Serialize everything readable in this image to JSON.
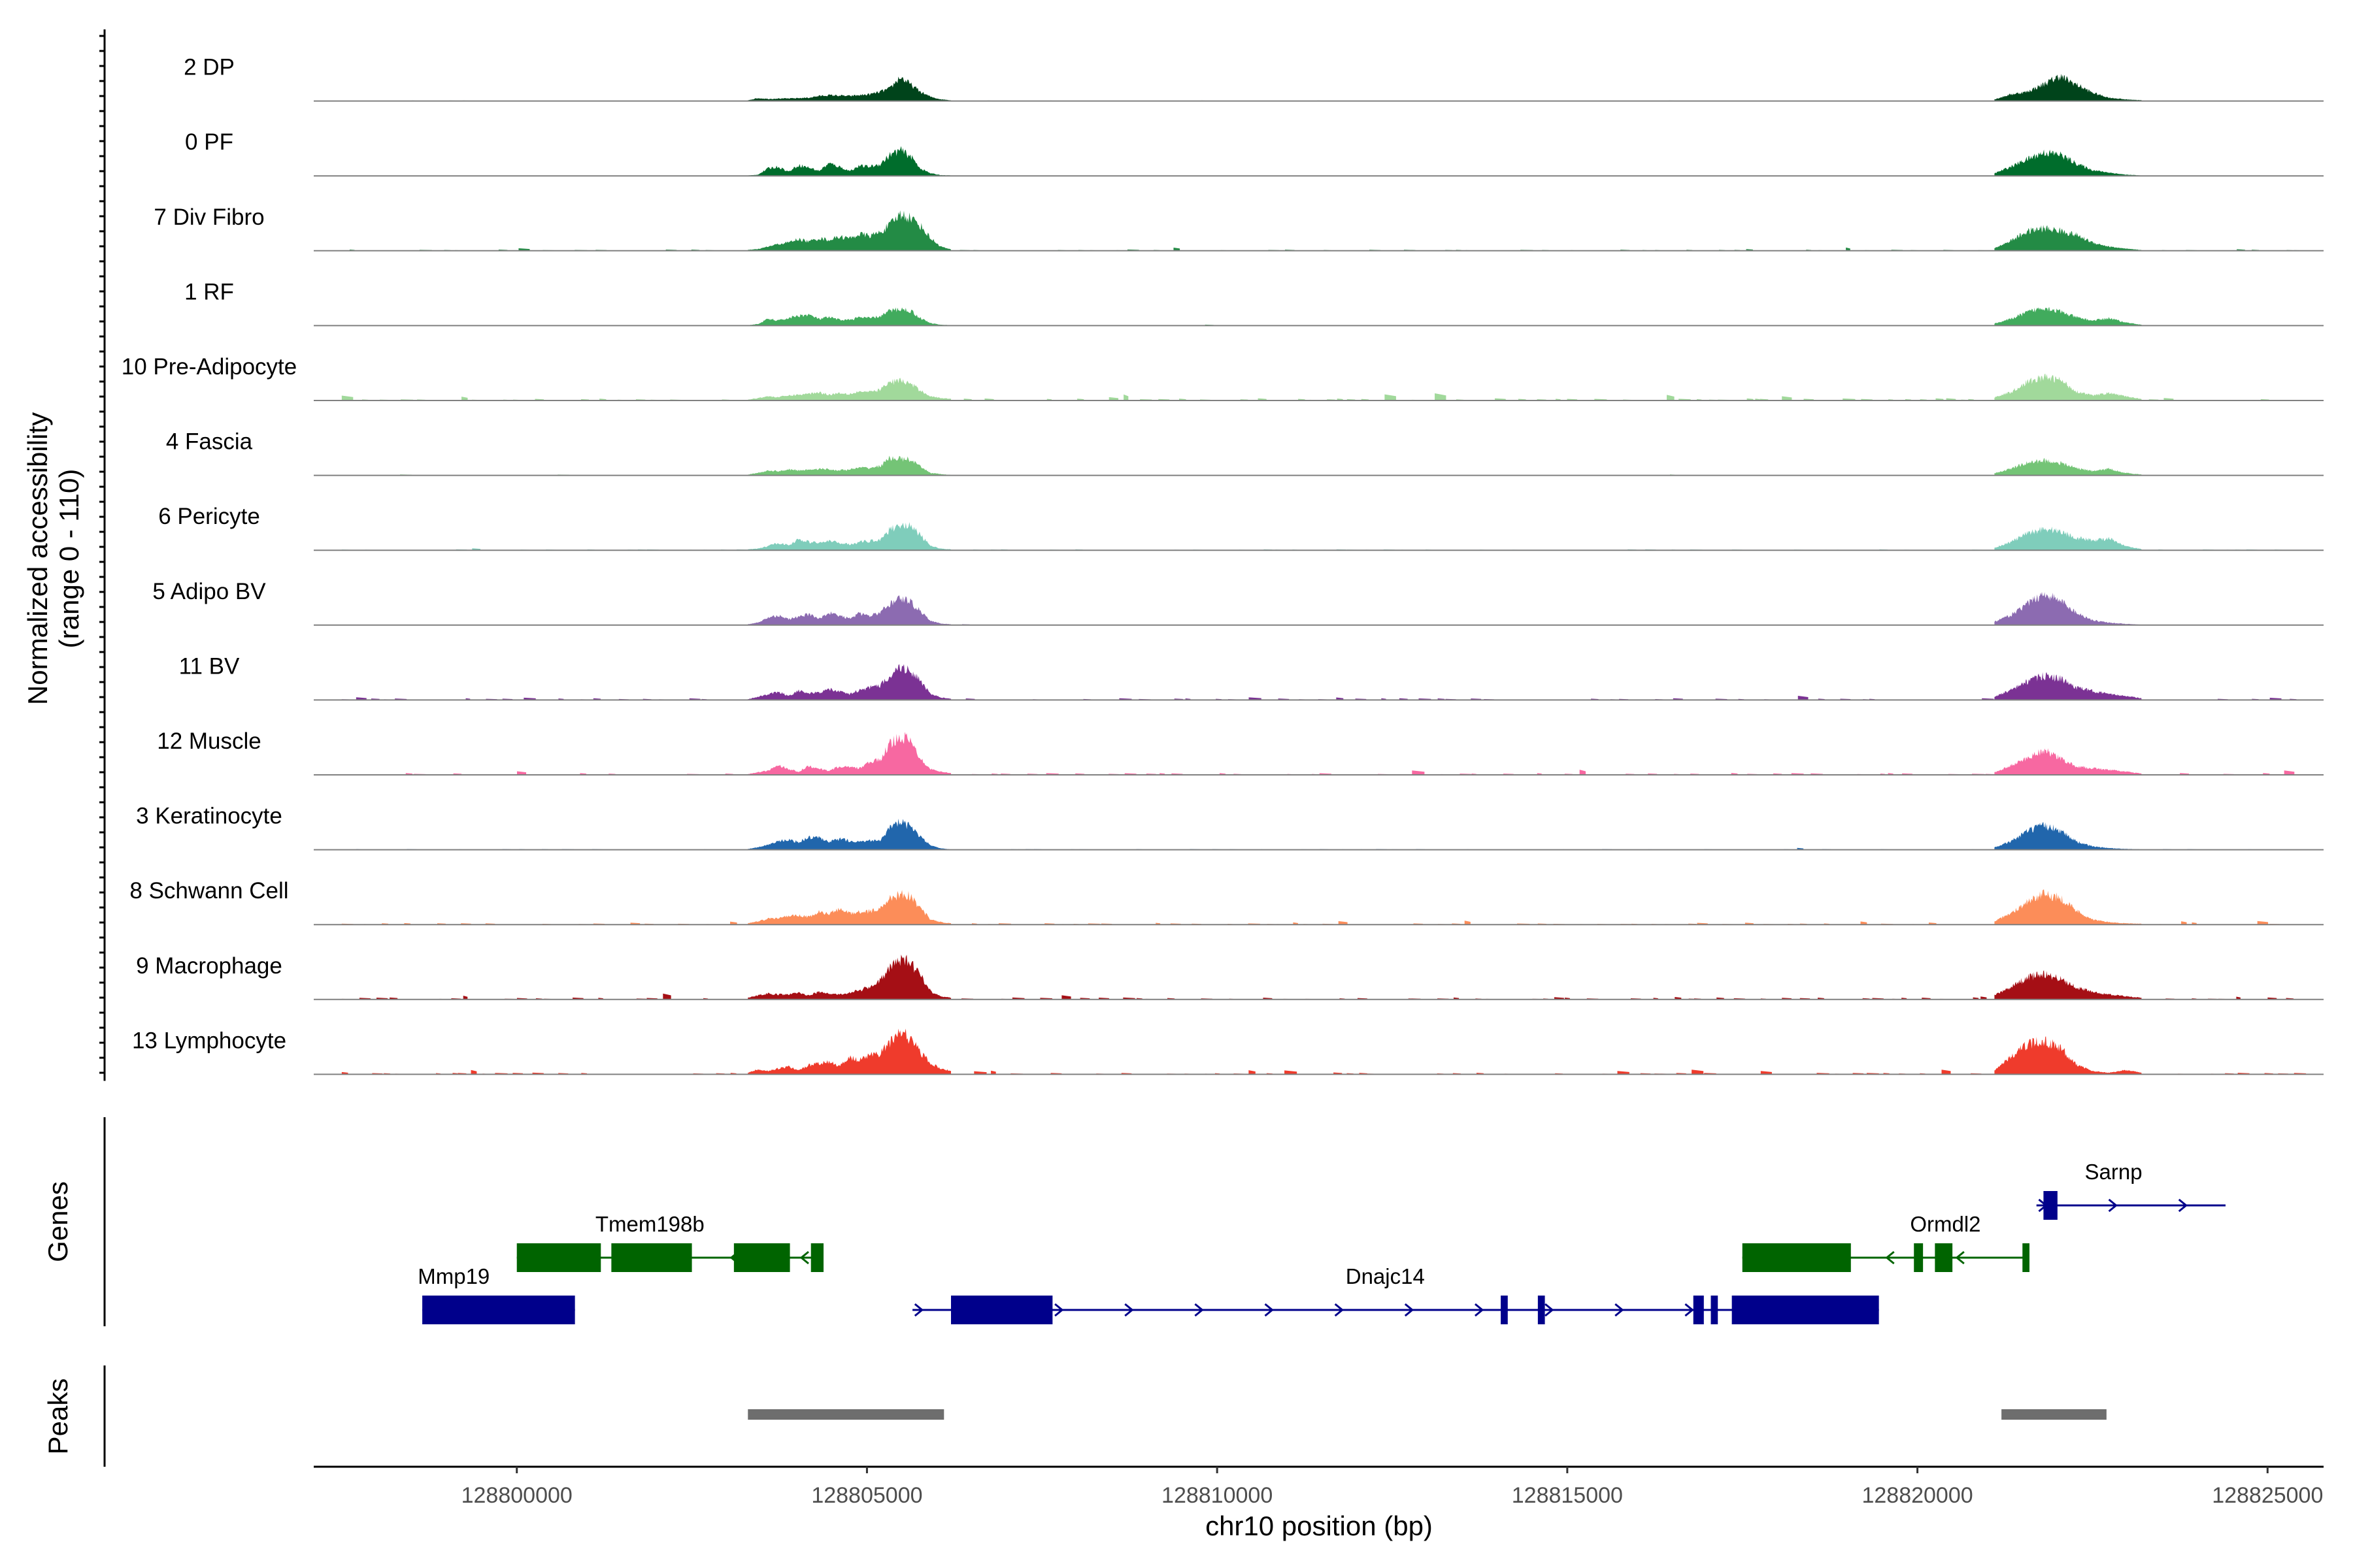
{
  "chart_data": {
    "type": "area",
    "title": "",
    "xlabel": "chr10 position (bp)",
    "ylabel_line1": "Normalized accessibility",
    "ylabel_line2": "(range 0 - 110)",
    "y_range": [
      0,
      110
    ],
    "xlim": [
      128797100,
      128825800
    ],
    "x_ticks": [
      128800000,
      128805000,
      128810000,
      128815000,
      128820000,
      128825000
    ],
    "x_tick_labels": [
      "128800000",
      "128805000",
      "128810000",
      "128815000",
      "128820000",
      "128825000"
    ],
    "genes_label": "Genes",
    "peaks_label": "Peaks",
    "tracks": [
      {
        "name": "2 DP",
        "color": "#00441b",
        "main": [
          2,
          7,
          5,
          6,
          6,
          7,
          8,
          12,
          14,
          13,
          12,
          14,
          16,
          22,
          30,
          58,
          40,
          22,
          10,
          4,
          2
        ],
        "peak2": [
          4,
          16,
          22,
          40,
          60,
          40,
          20,
          8,
          4,
          2
        ],
        "noise": 0.5
      },
      {
        "name": "0 PF",
        "color": "#006d2c",
        "main": [
          1,
          3,
          18,
          22,
          10,
          26,
          20,
          12,
          30,
          22,
          12,
          24,
          22,
          28,
          50,
          62,
          48,
          18,
          6,
          2,
          1
        ],
        "peak2": [
          6,
          22,
          40,
          56,
          52,
          30,
          14,
          8,
          3,
          1
        ],
        "noise": 0.3
      },
      {
        "name": "7 Div Fibro",
        "color": "#238b45",
        "main": [
          2,
          4,
          10,
          16,
          20,
          28,
          22,
          30,
          26,
          34,
          30,
          40,
          36,
          44,
          62,
          88,
          80,
          60,
          30,
          10,
          3
        ],
        "peak2": [
          6,
          24,
          46,
          54,
          48,
          38,
          20,
          10,
          5,
          2
        ],
        "noise": 1.2
      },
      {
        "name": "1 RF",
        "color": "#41ab5d",
        "main": [
          1,
          4,
          16,
          12,
          18,
          24,
          26,
          16,
          20,
          14,
          14,
          20,
          18,
          22,
          36,
          40,
          36,
          18,
          6,
          2,
          1
        ],
        "peak2": [
          5,
          16,
          32,
          44,
          34,
          20,
          12,
          18,
          8,
          2
        ],
        "noise": 0.5
      },
      {
        "name": "10 Pre-Adipocyte",
        "color": "#a1d99b",
        "main": [
          2,
          6,
          10,
          8,
          12,
          14,
          16,
          20,
          14,
          18,
          16,
          22,
          20,
          26,
          44,
          48,
          40,
          24,
          10,
          6,
          4
        ],
        "peak2": [
          8,
          20,
          44,
          56,
          50,
          22,
          12,
          18,
          10,
          4
        ],
        "noise": 2.2
      },
      {
        "name": "4 Fascia",
        "color": "#74c476",
        "main": [
          2,
          6,
          12,
          10,
          14,
          12,
          14,
          16,
          14,
          12,
          14,
          18,
          18,
          22,
          42,
          40,
          38,
          20,
          6,
          3,
          1
        ],
        "peak2": [
          5,
          16,
          30,
          36,
          30,
          18,
          10,
          16,
          6,
          2
        ],
        "noise": 0.4
      },
      {
        "name": "6 Pericyte",
        "color": "#7fcdbb",
        "main": [
          2,
          4,
          10,
          18,
          12,
          26,
          20,
          18,
          22,
          18,
          14,
          20,
          22,
          26,
          50,
          62,
          58,
          36,
          10,
          4,
          2
        ],
        "peak2": [
          6,
          20,
          40,
          52,
          46,
          30,
          24,
          28,
          10,
          3
        ],
        "noise": 0.9
      },
      {
        "name": "5 Adipo BV",
        "color": "#8c6bb1",
        "main": [
          2,
          6,
          18,
          24,
          14,
          20,
          26,
          16,
          30,
          22,
          16,
          28,
          22,
          30,
          52,
          66,
          56,
          34,
          10,
          4,
          2
        ],
        "peak2": [
          8,
          24,
          50,
          76,
          60,
          30,
          12,
          6,
          3,
          1
        ],
        "noise": 0.4
      },
      {
        "name": "11 BV",
        "color": "#7b3294",
        "main": [
          2,
          8,
          14,
          20,
          10,
          22,
          16,
          18,
          26,
          20,
          14,
          24,
          30,
          34,
          60,
          78,
          72,
          44,
          14,
          6,
          3
        ],
        "peak2": [
          8,
          24,
          44,
          58,
          52,
          30,
          22,
          14,
          10,
          4
        ],
        "noise": 1.8
      },
      {
        "name": "12 Muscle",
        "color": "#f768a1",
        "main": [
          2,
          6,
          10,
          24,
          14,
          8,
          22,
          14,
          10,
          20,
          18,
          16,
          30,
          36,
          74,
          96,
          80,
          40,
          14,
          8,
          4
        ],
        "peak2": [
          6,
          22,
          40,
          60,
          40,
          20,
          16,
          12,
          8,
          3
        ],
        "noise": 1.8
      },
      {
        "name": "3 Keratinocyte",
        "color": "#2166ac",
        "main": [
          2,
          6,
          12,
          20,
          24,
          18,
          30,
          28,
          18,
          26,
          22,
          20,
          22,
          24,
          52,
          66,
          56,
          30,
          10,
          3,
          1
        ],
        "peak2": [
          6,
          20,
          44,
          58,
          48,
          20,
          8,
          4,
          2,
          1
        ],
        "noise": 0.7
      },
      {
        "name": "8 Schwann Cell",
        "color": "#fc8d59",
        "main": [
          3,
          8,
          14,
          16,
          20,
          22,
          18,
          30,
          26,
          36,
          28,
          30,
          32,
          38,
          62,
          76,
          68,
          40,
          12,
          6,
          3
        ],
        "peak2": [
          8,
          26,
          56,
          72,
          66,
          34,
          12,
          6,
          3,
          2
        ],
        "noise": 1.4
      },
      {
        "name": "9 Macrophage",
        "color": "#a50f15",
        "main": [
          4,
          10,
          14,
          12,
          12,
          16,
          10,
          18,
          14,
          12,
          16,
          22,
          30,
          46,
          74,
          98,
          88,
          60,
          20,
          8,
          4
        ],
        "peak2": [
          10,
          30,
          52,
          62,
          50,
          30,
          18,
          12,
          8,
          4
        ],
        "noise": 2.0
      },
      {
        "name": "13 Lymphocyte",
        "color": "#ef3b2c",
        "main": [
          4,
          12,
          8,
          14,
          18,
          10,
          22,
          26,
          30,
          20,
          40,
          34,
          46,
          50,
          76,
          110,
          84,
          52,
          26,
          14,
          8
        ],
        "peak2": [
          10,
          42,
          72,
          80,
          66,
          24,
          8,
          4,
          10,
          4
        ],
        "noise": 1.6
      }
    ],
    "genes": [
      {
        "name": "Mmp19",
        "strand": "-",
        "color": "#00008b",
        "start": 128798650,
        "end": 128800830,
        "exons": [
          [
            128798650,
            128800830
          ]
        ]
      },
      {
        "name": "Tmem198b",
        "strand": "-",
        "color": "#006400",
        "start": 128800000,
        "end": 128804380,
        "exons": [
          [
            128800000,
            128801200
          ],
          [
            128801350,
            128802500
          ],
          [
            128803100,
            128803900
          ],
          [
            128804200,
            128804380
          ]
        ]
      },
      {
        "name": "Dnajc14",
        "strand": "+",
        "color": "#00008b",
        "start": 128805650,
        "end": 128819450,
        "exons": [
          [
            128806200,
            128807650
          ],
          [
            128814050,
            128814150
          ],
          [
            128814580,
            128814680
          ],
          [
            128816800,
            128816950
          ],
          [
            128817050,
            128817150
          ],
          [
            128817350,
            128819450
          ]
        ]
      },
      {
        "name": "Ormdl2",
        "strand": "-",
        "color": "#006400",
        "start": 128817500,
        "end": 128821600,
        "exons": [
          [
            128817500,
            128819050
          ],
          [
            128819950,
            128820080
          ],
          [
            128820250,
            128820500
          ],
          [
            128821500,
            128821600
          ]
        ]
      },
      {
        "name": "Sarnp",
        "strand": "+",
        "color": "#00008b",
        "start": 128821700,
        "end": 128824400,
        "exons": [
          [
            128821800,
            128822000
          ]
        ]
      }
    ],
    "peaks": [
      [
        128803300,
        128806100
      ],
      [
        128821200,
        128822700
      ]
    ],
    "peaks_color": "#6e6e6e"
  }
}
